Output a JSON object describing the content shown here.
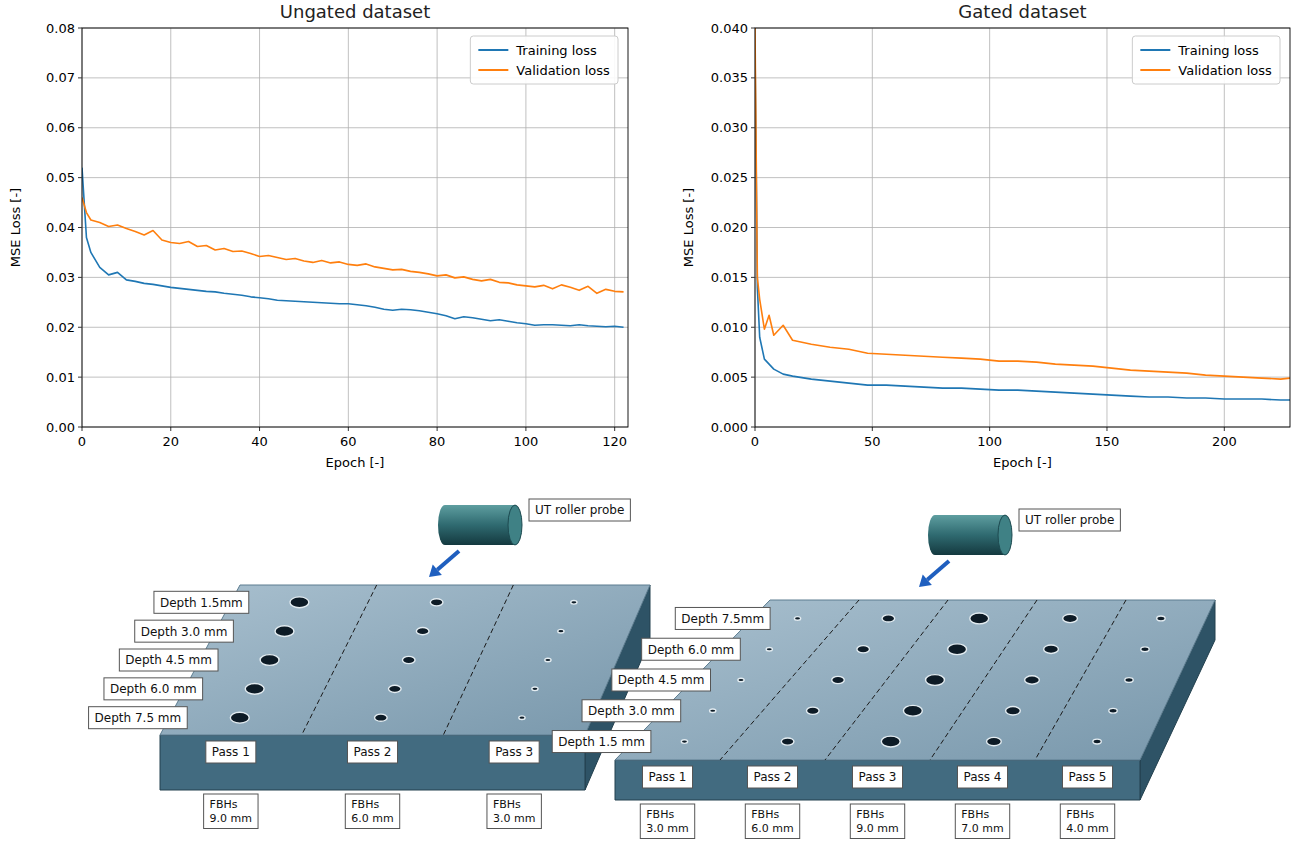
{
  "chart_data": [
    {
      "type": "line",
      "title": "Ungated dataset",
      "x_label": "Epoch [-]",
      "y_label": "MSE Loss [-]",
      "x": [
        0,
        1,
        2,
        4,
        6,
        8,
        10,
        12,
        14,
        16,
        18,
        20,
        22,
        24,
        26,
        28,
        30,
        32,
        34,
        36,
        38,
        40,
        42,
        44,
        46,
        48,
        50,
        52,
        54,
        56,
        58,
        60,
        62,
        64,
        66,
        68,
        70,
        72,
        74,
        76,
        78,
        80,
        82,
        84,
        86,
        88,
        90,
        92,
        94,
        96,
        98,
        100,
        102,
        104,
        106,
        108,
        110,
        112,
        114,
        116,
        118,
        120,
        122
      ],
      "series": [
        {
          "name": "Training loss",
          "color": "#1f77b4",
          "values": [
            0.052,
            0.038,
            0.035,
            0.032,
            0.0305,
            0.031,
            0.0295,
            0.0292,
            0.0288,
            0.0286,
            0.0283,
            0.028,
            0.0278,
            0.0276,
            0.0274,
            0.0272,
            0.0271,
            0.0268,
            0.0266,
            0.0264,
            0.0261,
            0.0259,
            0.0257,
            0.0254,
            0.0253,
            0.0252,
            0.0251,
            0.025,
            0.0249,
            0.0248,
            0.0247,
            0.0247,
            0.0245,
            0.0243,
            0.024,
            0.0236,
            0.0234,
            0.0236,
            0.0235,
            0.0233,
            0.023,
            0.0227,
            0.0223,
            0.0217,
            0.0221,
            0.0219,
            0.0216,
            0.0213,
            0.0215,
            0.0212,
            0.0209,
            0.0207,
            0.0204,
            0.0205,
            0.0205,
            0.0204,
            0.0203,
            0.0205,
            0.0203,
            0.0202,
            0.0201,
            0.0202,
            0.02
          ]
        },
        {
          "name": "Validation loss",
          "color": "#ff7f0e",
          "values": [
            0.046,
            0.043,
            0.0415,
            0.041,
            0.0402,
            0.0405,
            0.0398,
            0.0392,
            0.0385,
            0.0394,
            0.0375,
            0.037,
            0.0368,
            0.0372,
            0.0362,
            0.0364,
            0.0355,
            0.0358,
            0.0352,
            0.0353,
            0.0348,
            0.0342,
            0.0344,
            0.034,
            0.0336,
            0.0338,
            0.0333,
            0.033,
            0.0334,
            0.0329,
            0.0331,
            0.0326,
            0.0324,
            0.0327,
            0.0321,
            0.0318,
            0.0315,
            0.0316,
            0.0312,
            0.031,
            0.0307,
            0.0303,
            0.0305,
            0.0299,
            0.0301,
            0.0296,
            0.0293,
            0.0296,
            0.029,
            0.0289,
            0.0285,
            0.0283,
            0.0281,
            0.0284,
            0.0277,
            0.0285,
            0.028,
            0.0274,
            0.0282,
            0.0268,
            0.0276,
            0.0272,
            0.0271
          ]
        }
      ],
      "xlim": [
        0,
        123
      ],
      "xticks": [
        0,
        20,
        40,
        60,
        80,
        100,
        120
      ],
      "ylim": [
        0,
        0.08
      ],
      "yticks": [
        {
          "value": 0,
          "label": "0.00"
        },
        0.01,
        0.02,
        0.03,
        0.04,
        0.05,
        0.06,
        0.07,
        0.08
      ],
      "grid": true,
      "legend": "upper right"
    },
    {
      "type": "line",
      "title": "Gated dataset",
      "x_label": "Epoch [-]",
      "y_label": "MSE Loss [-]",
      "x": [
        0,
        1,
        2,
        4,
        6,
        8,
        12,
        16,
        24,
        32,
        40,
        48,
        56,
        64,
        72,
        80,
        88,
        96,
        104,
        112,
        120,
        128,
        136,
        144,
        152,
        160,
        168,
        176,
        184,
        192,
        200,
        208,
        216,
        224,
        228
      ],
      "series": [
        {
          "name": "Training loss",
          "color": "#1f77b4",
          "values": [
            0.038,
            0.014,
            0.009,
            0.0068,
            0.0063,
            0.0058,
            0.0053,
            0.0051,
            0.0048,
            0.0046,
            0.0044,
            0.0042,
            0.0042,
            0.0041,
            0.004,
            0.0039,
            0.0039,
            0.0038,
            0.0037,
            0.0037,
            0.0036,
            0.0035,
            0.0034,
            0.0033,
            0.0032,
            0.0031,
            0.003,
            0.003,
            0.0029,
            0.0029,
            0.0028,
            0.0028,
            0.0028,
            0.0027,
            0.0027
          ]
        },
        {
          "name": "Validation loss",
          "color": "#ff7f0e",
          "values": [
            0.04,
            0.015,
            0.0128,
            0.0098,
            0.0112,
            0.0092,
            0.0102,
            0.0087,
            0.0083,
            0.008,
            0.0078,
            0.0074,
            0.0073,
            0.0072,
            0.0071,
            0.007,
            0.0069,
            0.0068,
            0.0066,
            0.0066,
            0.0065,
            0.0063,
            0.0062,
            0.0061,
            0.0059,
            0.0057,
            0.0056,
            0.0055,
            0.0054,
            0.0052,
            0.0051,
            0.005,
            0.0049,
            0.0048,
            0.0049
          ]
        }
      ],
      "xlim": [
        0,
        228
      ],
      "xticks": [
        0,
        50,
        100,
        150,
        200
      ],
      "ylim": [
        0,
        0.04
      ],
      "yticks": [
        {
          "value": 0,
          "label": "0.000"
        },
        {
          "value": 0.005,
          "label": "0.005"
        },
        {
          "value": 0.01,
          "label": "0.010"
        },
        {
          "value": 0.015,
          "label": "0.015"
        },
        {
          "value": 0.02,
          "label": "0.020"
        },
        {
          "value": 0.025,
          "label": "0.025"
        },
        {
          "value": 0.03,
          "label": "0.030"
        },
        {
          "value": 0.035,
          "label": "0.035"
        },
        {
          "value": 0.04,
          "label": "0.040"
        }
      ],
      "grid": true,
      "legend": "upper right"
    }
  ],
  "diagrams": [
    {
      "probe_label": "UT roller probe",
      "depths": [
        "Depth 1.5mm",
        "Depth 3.0 mm",
        "Depth 4.5 mm",
        "Depth 6.0 mm",
        "Depth 7.5 mm"
      ],
      "passes": [
        {
          "label": "Pass 1",
          "fbh": "FBHs",
          "size": "9.0 mm"
        },
        {
          "label": "Pass 2",
          "fbh": "FBHs",
          "size": "6.0 mm"
        },
        {
          "label": "Pass 3",
          "fbh": "FBHs",
          "size": "3.0 mm"
        }
      ]
    },
    {
      "probe_label": "UT roller probe",
      "depths": [
        "Depth 7.5mm",
        "Depth 6.0 mm",
        "Depth 4.5 mm",
        "Depth 3.0 mm",
        "Depth 1.5 mm"
      ],
      "passes": [
        {
          "label": "Pass 1",
          "fbh": "FBHs",
          "size": "3.0 mm"
        },
        {
          "label": "Pass 2",
          "fbh": "FBHs",
          "size": "6.0 mm"
        },
        {
          "label": "Pass 3",
          "fbh": "FBHs",
          "size": "9.0 mm"
        },
        {
          "label": "Pass 4",
          "fbh": "FBHs",
          "size": "7.0 mm"
        },
        {
          "label": "Pass 5",
          "fbh": "FBHs",
          "size": "4.0 mm"
        }
      ]
    }
  ]
}
